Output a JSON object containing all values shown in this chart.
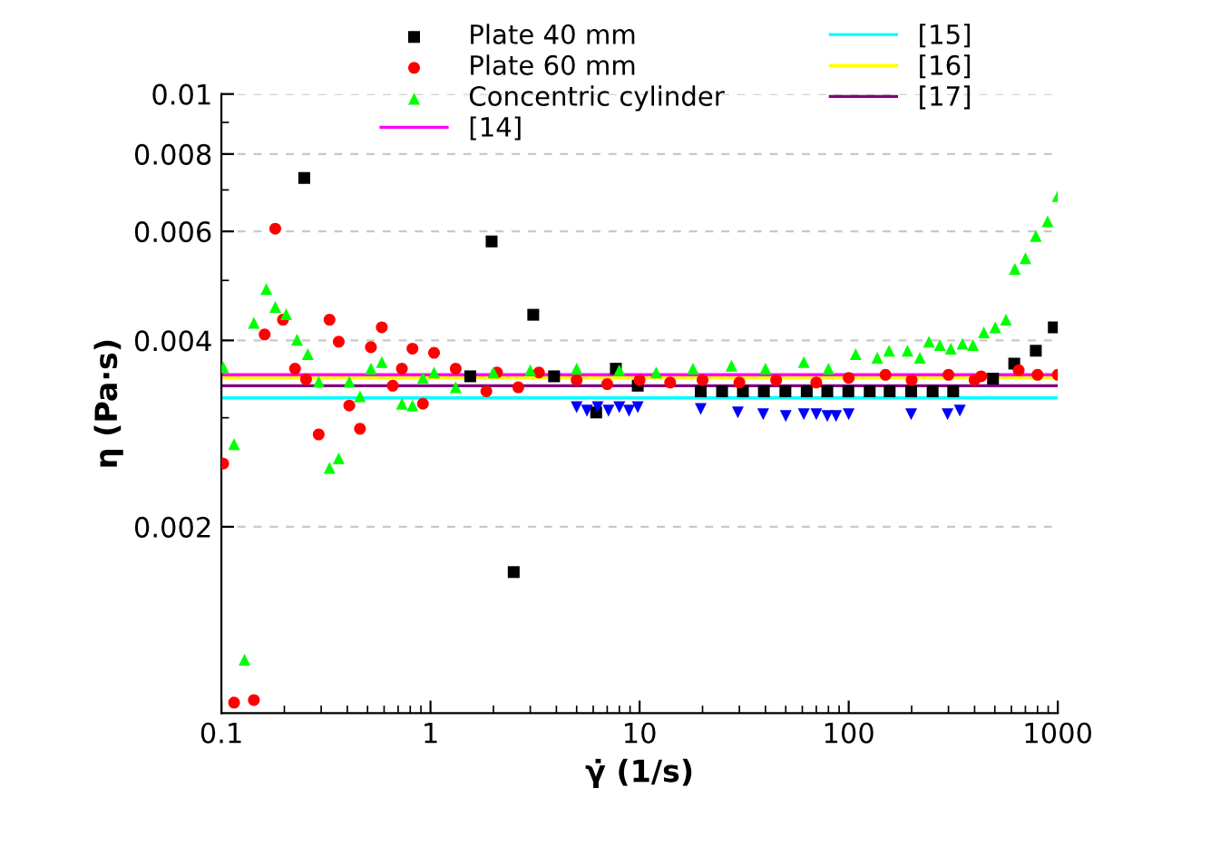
{
  "chart_data": {
    "type": "scatter",
    "xlabel": "γ̇ (1/s)",
    "ylabel": "η (Pa·s)",
    "log": "xy",
    "xlim": [
      0.1,
      1000
    ],
    "xticks": [
      0.1,
      1,
      10,
      100,
      1000
    ],
    "ylim": [
      0.001,
      0.01
    ],
    "yticks": [
      0.002,
      0.004,
      0.006,
      0.008,
      0.01
    ],
    "grid": "y",
    "legend": "top",
    "series": [
      {
        "name": "Plate 40 mm",
        "color": "#000000",
        "marker": "square",
        "x": [
          0.249,
          1.55,
          1.96,
          2.5,
          3.1,
          3.9,
          6.2,
          7.7,
          9.8,
          19.6,
          24.8,
          31.2,
          39.3,
          49.8,
          63,
          79,
          99.6,
          126,
          157,
          199,
          252,
          316,
          490,
          619,
          785,
          957
        ],
        "values": [
          0.00732,
          0.0035,
          0.00578,
          0.00169,
          0.0044,
          0.0035,
          0.00306,
          0.0036,
          0.00338,
          0.00331,
          0.00331,
          0.00331,
          0.00331,
          0.00331,
          0.00331,
          0.00331,
          0.00331,
          0.00331,
          0.00331,
          0.00331,
          0.00331,
          0.00331,
          0.00347,
          0.00367,
          0.00385,
          0.0042
        ]
      },
      {
        "name": "Plate 60 mm",
        "color": "#ff0000",
        "marker": "circle",
        "x": [
          0.102,
          0.115,
          0.143,
          0.161,
          0.181,
          0.197,
          0.225,
          0.254,
          0.292,
          0.329,
          0.364,
          0.409,
          0.46,
          0.519,
          0.585,
          0.66,
          0.73,
          0.82,
          0.92,
          1.04,
          1.32,
          1.85,
          2.08,
          2.63,
          3.3,
          5,
          7,
          10,
          14,
          20,
          30,
          45,
          70,
          100,
          150,
          200,
          300,
          400,
          430,
          650,
          800,
          1000
        ],
        "values": [
          0.00253,
          0.00104,
          0.00105,
          0.00409,
          0.00606,
          0.00432,
          0.0036,
          0.00346,
          0.00282,
          0.00432,
          0.00398,
          0.00314,
          0.00288,
          0.0039,
          0.0042,
          0.00338,
          0.0036,
          0.00388,
          0.00316,
          0.00382,
          0.0036,
          0.00331,
          0.00355,
          0.00336,
          0.00355,
          0.00345,
          0.0034,
          0.00345,
          0.00342,
          0.00345,
          0.00342,
          0.00345,
          0.00342,
          0.00348,
          0.00352,
          0.00345,
          0.00352,
          0.00345,
          0.0035,
          0.00358,
          0.00352,
          0.00352
        ]
      },
      {
        "name": "Concentric cylinder",
        "color": "#00ff00",
        "marker": "triangle",
        "x": [
          0.102,
          0.115,
          0.129,
          0.143,
          0.164,
          0.181,
          0.204,
          0.23,
          0.259,
          0.292,
          0.329,
          0.364,
          0.409,
          0.46,
          0.519,
          0.585,
          0.73,
          0.82,
          0.92,
          1.04,
          1.32,
          2,
          3,
          5,
          8,
          12,
          18,
          27.5,
          40,
          61,
          80,
          108,
          137,
          156,
          191,
          219,
          242,
          273,
          308,
          350,
          393,
          443,
          502,
          565,
          623,
          700,
          785,
          894,
          1000
        ],
        "values": [
          0.00362,
          0.00272,
          0.00122,
          0.00427,
          0.00484,
          0.00453,
          0.00441,
          0.00401,
          0.0038,
          0.00343,
          0.00249,
          0.00258,
          0.00343,
          0.00325,
          0.0036,
          0.00369,
          0.00316,
          0.00314,
          0.00348,
          0.00355,
          0.00336,
          0.00355,
          0.00358,
          0.0036,
          0.00358,
          0.00355,
          0.0036,
          0.00364,
          0.0036,
          0.00369,
          0.0036,
          0.0038,
          0.00375,
          0.00385,
          0.00385,
          0.00375,
          0.00398,
          0.00393,
          0.00388,
          0.00395,
          0.00393,
          0.00412,
          0.0042,
          0.00432,
          0.00522,
          0.00543,
          0.0059,
          0.00623,
          0.00684
        ]
      },
      {
        "color": "#0000ff",
        "marker": "triangle_down",
        "x": [
          5.0,
          5.6,
          6.3,
          7.1,
          8.0,
          8.9,
          9.8,
          19.6,
          29.5,
          39,
          50,
          61,
          70,
          79,
          87,
          100,
          199,
          297,
          340
        ],
        "values": [
          0.00312,
          0.00308,
          0.00312,
          0.00308,
          0.00312,
          0.00308,
          0.00312,
          0.0031,
          0.00306,
          0.00304,
          0.00302,
          0.00304,
          0.00304,
          0.00302,
          0.00302,
          0.00304,
          0.00304,
          0.00304,
          0.00308
        ]
      },
      {
        "name": "[14]",
        "type": "line",
        "color": "#ff00ff",
        "marker": "none",
        "x": [
          0.1,
          1000
        ],
        "values": [
          0.00352,
          0.00352
        ]
      },
      {
        "name": "[15]",
        "type": "line",
        "color": "#00ffff",
        "marker": "none",
        "x": [
          0.1,
          1000
        ],
        "values": [
          0.00323,
          0.00323
        ]
      },
      {
        "name": "[16]",
        "type": "line",
        "color": "#ffff00",
        "marker": "none",
        "x": [
          0.1,
          1000
        ],
        "values": [
          0.00348,
          0.00348
        ]
      },
      {
        "name": "[17]",
        "type": "line",
        "color": "#800080",
        "marker": "none",
        "x": [
          0.1,
          1000
        ],
        "values": [
          0.00338,
          0.00338
        ]
      }
    ]
  }
}
